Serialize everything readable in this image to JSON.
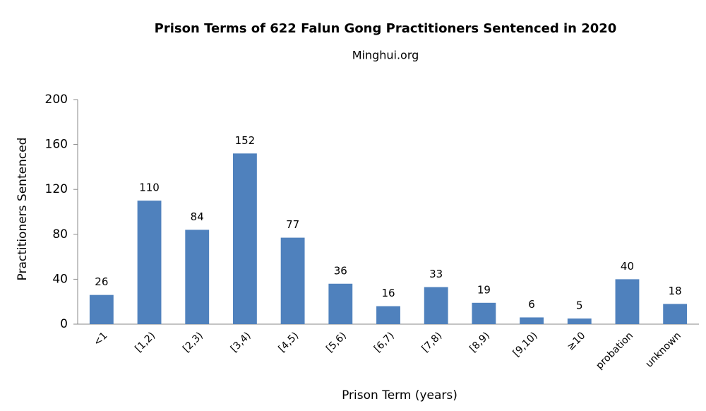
{
  "chart_data": {
    "type": "bar",
    "title": "Prison Terms of 622 Falun Gong Practitioners Sentenced in 2020",
    "subtitle": "Minghui.org",
    "x_label": "Prison Term (years)",
    "y_label": "Practitioners Sentenced",
    "categories": [
      "<1",
      "[1,2)",
      "[2,3)",
      "[3,4)",
      "[4,5)",
      "[5,6)",
      "[6,7)",
      "[7,8)",
      "[8,9)",
      "[9,10)",
      "≥10",
      "probation",
      "unknown"
    ],
    "values": [
      26,
      110,
      84,
      152,
      77,
      36,
      16,
      33,
      19,
      6,
      5,
      40,
      18
    ],
    "color": "#4f81bd",
    "ylim": [
      0,
      200
    ],
    "yticks": [
      0,
      40,
      80,
      120,
      160,
      200
    ],
    "grid": false
  }
}
